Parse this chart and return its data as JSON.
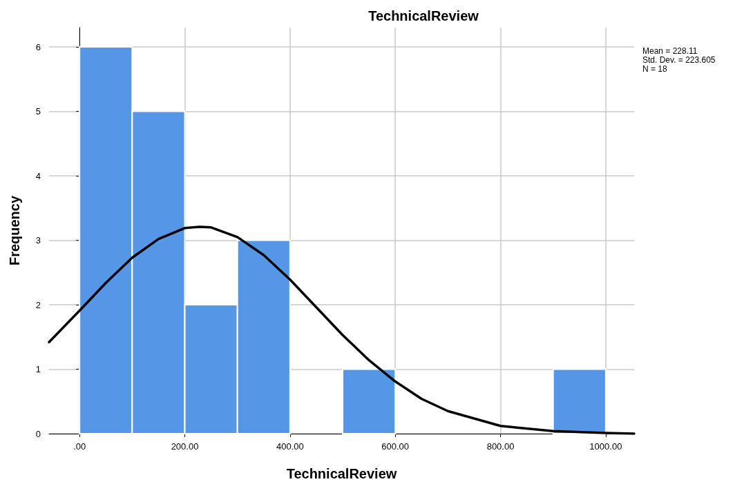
{
  "chart_data": {
    "type": "histogram",
    "title": "TechnicalReview",
    "xlabel": "TechnicalReview",
    "ylabel": "Frequency",
    "series": [
      {
        "type": "histogram",
        "color": "#5596e6",
        "bins": [
          0,
          100,
          200,
          300,
          400,
          500,
          600,
          700,
          800,
          900,
          1000
        ],
        "values": [
          6,
          5,
          2,
          3,
          0,
          1,
          0,
          0,
          0,
          1
        ]
      },
      {
        "type": "line",
        "color": "#000000",
        "x": [
          -58,
          0,
          50,
          100,
          150,
          200,
          228,
          250,
          300,
          350,
          400,
          450,
          500,
          550,
          600,
          650,
          700,
          800,
          900,
          1000,
          1054
        ],
        "values": [
          1.42,
          1.91,
          2.34,
          2.73,
          3.02,
          3.19,
          3.21,
          3.2,
          3.05,
          2.77,
          2.39,
          1.96,
          1.53,
          1.14,
          0.81,
          0.54,
          0.35,
          0.12,
          0.04,
          0.01,
          0.0
        ]
      }
    ],
    "xlim": [
      -58,
      1054
    ],
    "ylim": [
      0,
      6.3
    ],
    "xticks": [
      {
        "value": 0,
        "label": ".00"
      },
      {
        "value": 200,
        "label": "200.00"
      },
      {
        "value": 400,
        "label": "400.00"
      },
      {
        "value": 600,
        "label": "600.00"
      },
      {
        "value": 800,
        "label": "800.00"
      },
      {
        "value": 1000,
        "label": "1000.00"
      }
    ],
    "yticks": [
      0,
      1,
      2,
      3,
      4,
      5,
      6
    ],
    "grid": true,
    "line_style": "solid",
    "annotations": [
      "Mean = 228.11",
      "Std. Dev. = 223.605",
      "N = 18"
    ]
  }
}
